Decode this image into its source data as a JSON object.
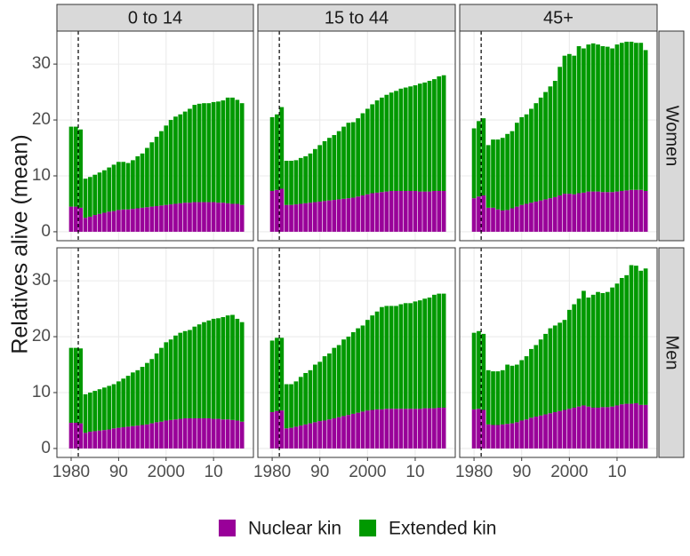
{
  "chart_data": {
    "type": "bar",
    "stacked": true,
    "ylabel": "Relatives alive (mean)",
    "facets": {
      "columns": [
        "0 to 14",
        "15 to 44",
        "45+"
      ],
      "rows": [
        "Women",
        "Men"
      ]
    },
    "x": [
      1980,
      1981,
      1982,
      1983,
      1984,
      1985,
      1986,
      1987,
      1988,
      1989,
      1990,
      1991,
      1992,
      1993,
      1994,
      1995,
      1996,
      1997,
      1998,
      1999,
      2000,
      2001,
      2002,
      2003,
      2004,
      2005,
      2006,
      2007,
      2008,
      2009,
      2010,
      2011,
      2012,
      2013,
      2014,
      2015,
      2016
    ],
    "xlim": [
      1977,
      2018.4
    ],
    "xticks": [
      1980,
      {
        "value": 1990,
        "label": "90"
      },
      2000,
      {
        "value": 2010,
        "label": "10"
      }
    ],
    "ylim": [
      -1.6,
      35.9
    ],
    "yticks": [
      0,
      10,
      20,
      30
    ],
    "vline": 1981.5,
    "grid": true,
    "legend": "bottom",
    "series": [
      {
        "name": "Nuclear kin",
        "color": "#990099",
        "values": [
          [
            4.5,
            4.5,
            4.3,
            2.5,
            2.7,
            3.0,
            3.2,
            3.4,
            3.6,
            3.7,
            3.9,
            4.0,
            4.0,
            4.1,
            4.2,
            4.3,
            4.4,
            4.5,
            4.6,
            4.7,
            4.8,
            4.9,
            5.0,
            5.1,
            5.2,
            5.2,
            5.3,
            5.3,
            5.3,
            5.3,
            5.3,
            5.2,
            5.2,
            5.1,
            5.0,
            5.0,
            4.8
          ],
          [
            7.3,
            7.5,
            7.7,
            4.8,
            4.8,
            4.9,
            5.0,
            5.1,
            5.2,
            5.3,
            5.4,
            5.5,
            5.6,
            5.7,
            5.8,
            5.9,
            6.0,
            6.1,
            6.3,
            6.5,
            6.7,
            6.9,
            7.0,
            7.1,
            7.2,
            7.3,
            7.3,
            7.3,
            7.3,
            7.3,
            7.3,
            7.2,
            7.2,
            7.2,
            7.3,
            7.3,
            7.3
          ],
          [
            6.0,
            6.3,
            6.5,
            4.3,
            4.3,
            4.0,
            3.8,
            3.9,
            4.2,
            4.5,
            4.8,
            5.0,
            5.2,
            5.4,
            5.6,
            5.8,
            6.0,
            6.2,
            6.5,
            6.8,
            6.8,
            6.7,
            6.9,
            7.0,
            7.2,
            7.2,
            7.2,
            7.1,
            7.1,
            7.1,
            7.2,
            7.3,
            7.4,
            7.5,
            7.5,
            7.5,
            7.3
          ],
          [
            4.6,
            4.6,
            4.5,
            2.8,
            3.0,
            3.1,
            3.2,
            3.3,
            3.4,
            3.6,
            3.7,
            3.8,
            3.9,
            4.0,
            4.1,
            4.2,
            4.3,
            4.5,
            4.7,
            4.8,
            5.0,
            5.1,
            5.2,
            5.3,
            5.4,
            5.4,
            5.4,
            5.4,
            5.4,
            5.4,
            5.3,
            5.3,
            5.2,
            5.2,
            5.1,
            5.0,
            4.8
          ],
          [
            6.5,
            6.7,
            6.8,
            3.6,
            3.7,
            3.9,
            4.1,
            4.3,
            4.5,
            4.7,
            4.9,
            5.0,
            5.2,
            5.4,
            5.6,
            5.8,
            6.0,
            6.2,
            6.4,
            6.6,
            6.8,
            6.9,
            7.0,
            7.0,
            7.1,
            7.1,
            7.1,
            7.1,
            7.1,
            7.1,
            7.1,
            7.1,
            7.2,
            7.2,
            7.2,
            7.3,
            7.3
          ],
          [
            7.0,
            7.1,
            6.9,
            4.3,
            4.2,
            4.2,
            4.3,
            4.4,
            4.5,
            4.7,
            5.0,
            5.2,
            5.5,
            5.7,
            5.9,
            6.1,
            6.3,
            6.5,
            6.7,
            6.9,
            7.1,
            7.3,
            7.5,
            7.7,
            7.5,
            7.3,
            7.3,
            7.4,
            7.4,
            7.5,
            7.7,
            7.9,
            8.0,
            8.0,
            8.1,
            7.8,
            7.8
          ]
        ]
      },
      {
        "name": "Extended kin",
        "color": "#009900",
        "values": [
          [
            14.3,
            14.3,
            14.0,
            7.0,
            7.1,
            7.2,
            7.4,
            7.6,
            7.9,
            8.3,
            8.6,
            8.5,
            8.3,
            8.7,
            9.3,
            9.7,
            10.6,
            11.5,
            12.4,
            13.3,
            14.2,
            15.1,
            15.6,
            15.9,
            16.3,
            16.8,
            17.4,
            17.6,
            17.7,
            17.7,
            17.9,
            18.1,
            18.3,
            18.9,
            19.0,
            18.6,
            18.2
          ],
          [
            13.2,
            13.5,
            14.6,
            7.9,
            7.9,
            7.9,
            8.2,
            8.4,
            8.8,
            9.5,
            10.1,
            10.7,
            11.2,
            11.6,
            12.2,
            12.9,
            13.5,
            13.5,
            14.0,
            14.7,
            15.3,
            15.9,
            16.5,
            16.9,
            17.3,
            17.6,
            17.9,
            18.3,
            18.5,
            18.7,
            18.9,
            19.3,
            19.5,
            19.8,
            20.0,
            20.5,
            20.7
          ],
          [
            12.5,
            13.5,
            13.8,
            11.2,
            12.2,
            12.5,
            13.0,
            13.6,
            13.8,
            15.0,
            15.7,
            16.0,
            16.8,
            17.6,
            18.4,
            19.2,
            20.0,
            20.8,
            23.0,
            24.7,
            25.0,
            24.8,
            26.3,
            25.8,
            26.3,
            26.5,
            26.3,
            26.1,
            26.0,
            25.7,
            26.3,
            26.5,
            26.6,
            26.5,
            26.3,
            26.3,
            25.2
          ],
          [
            13.4,
            13.4,
            13.4,
            6.9,
            7.0,
            7.2,
            7.4,
            7.6,
            7.8,
            7.9,
            8.3,
            8.7,
            9.1,
            9.6,
            9.9,
            10.4,
            11.0,
            11.5,
            12.3,
            13.2,
            14.0,
            14.4,
            15.0,
            15.4,
            15.6,
            15.8,
            16.4,
            16.8,
            17.2,
            17.5,
            17.9,
            18.0,
            18.3,
            18.6,
            18.8,
            18.2,
            17.8
          ],
          [
            12.8,
            13.1,
            13.0,
            7.9,
            7.8,
            8.1,
            8.7,
            9.2,
            9.5,
            10.3,
            10.6,
            11.5,
            11.8,
            12.6,
            12.9,
            13.7,
            14.0,
            14.6,
            15.1,
            15.4,
            16.2,
            16.9,
            17.5,
            18.3,
            18.4,
            18.4,
            18.4,
            18.7,
            18.9,
            18.9,
            19.2,
            19.4,
            19.6,
            19.8,
            20.3,
            20.4,
            20.4
          ],
          [
            13.7,
            13.9,
            13.6,
            9.7,
            9.6,
            9.6,
            9.7,
            10.6,
            10.3,
            10.3,
            10.8,
            11.3,
            12.3,
            12.8,
            13.6,
            14.4,
            15.2,
            15.5,
            15.8,
            16.1,
            17.7,
            18.5,
            19.3,
            20.5,
            19.5,
            20.2,
            20.7,
            20.4,
            20.6,
            21.3,
            21.8,
            22.6,
            23.0,
            24.8,
            24.6,
            24.0,
            24.4
          ]
        ]
      }
    ]
  }
}
